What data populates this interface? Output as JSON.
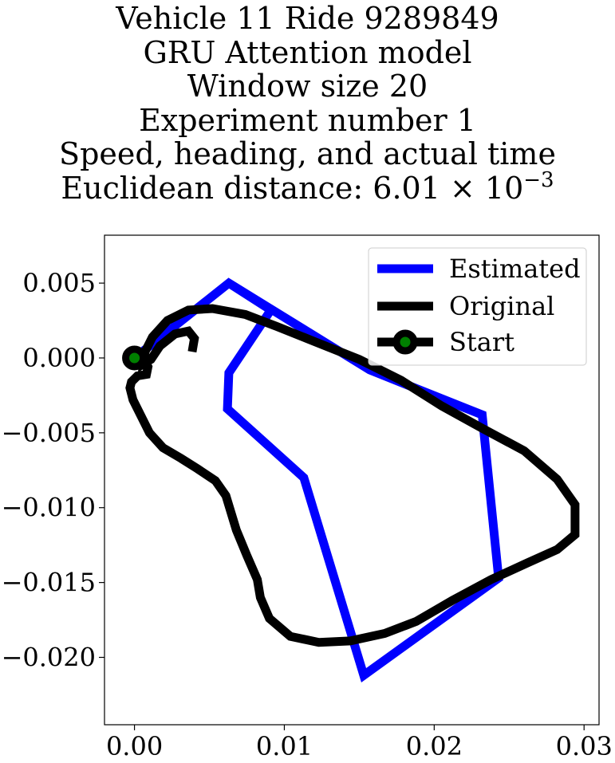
{
  "title": {
    "lines": [
      "Vehicle 11 Ride 9289849",
      "GRU Attention model",
      "Window size 20",
      "Experiment number 1",
      "Speed, heading, and actual time"
    ],
    "distance_prefix": "Euclidean distance: 6.01",
    "distance_times": "×",
    "distance_base": "10",
    "distance_exponent": "−3"
  },
  "chart_data": {
    "type": "line",
    "title": "Vehicle 11 Ride 9289849 GRU Attention model Window size 20 Experiment number 1 Speed, heading, and actual time Euclidean distance: 6.01 × 10^−3",
    "xlabel": "",
    "ylabel": "",
    "xlim": [
      -0.002,
      0.031
    ],
    "ylim": [
      -0.0245,
      0.0082
    ],
    "grid": false,
    "legend_position": "top-right",
    "x_ticks": [
      {
        "value": 0.0,
        "label": "0.00"
      },
      {
        "value": 0.01,
        "label": "0.01"
      },
      {
        "value": 0.02,
        "label": "0.02"
      },
      {
        "value": 0.03,
        "label": "0.03"
      }
    ],
    "y_ticks": [
      {
        "value": 0.005,
        "label": "0.005"
      },
      {
        "value": 0.0,
        "label": "0.000"
      },
      {
        "value": -0.005,
        "label": "−0.005"
      },
      {
        "value": -0.01,
        "label": "−0.010"
      },
      {
        "value": -0.015,
        "label": "−0.015"
      },
      {
        "value": -0.02,
        "label": "−0.020"
      }
    ],
    "series": [
      {
        "name": "Estimated",
        "color": "#0000ff",
        "x": [
          0.0,
          0.0063,
          0.0091,
          0.0063,
          0.0062,
          0.0113,
          0.0153,
          0.0243,
          0.0232,
          0.0157,
          0.0063,
          0.0
        ],
        "y": [
          0.0,
          0.005,
          0.0032,
          -0.001,
          -0.0034,
          -0.008,
          -0.0212,
          -0.0147,
          -0.0038,
          -0.0008,
          0.005,
          0.0
        ]
      },
      {
        "name": "Original",
        "color": "#000000",
        "x": [
          0.0039,
          0.004,
          0.0036,
          0.0027,
          0.0017,
          0.0011,
          0.0006,
          0.0007,
          0.0012,
          0.0022,
          0.0036,
          0.0052,
          0.0074,
          0.0095,
          0.012,
          0.015,
          0.0178,
          0.0205,
          0.0232,
          0.026,
          0.0282,
          0.0294,
          0.0294,
          0.0282,
          0.0262,
          0.0238,
          0.0212,
          0.0188,
          0.0167,
          0.0144,
          0.0123,
          0.0104,
          0.009,
          0.0084,
          0.0082,
          0.0075,
          0.0068,
          0.0061,
          0.0054,
          0.0042,
          0.0031,
          0.0019,
          0.001,
          0.0004,
          -0.0001,
          -0.0003,
          -0.0002,
          0.0002,
          0.0008,
          0.0009,
          0.0006
        ],
        "y": [
          0.0007,
          0.0013,
          0.0018,
          0.0016,
          0.0008,
          -0.0001,
          -0.0004,
          0.0004,
          0.0014,
          0.0025,
          0.0032,
          0.0033,
          0.0029,
          0.0021,
          0.0011,
          -0.0001,
          -0.0015,
          -0.0032,
          -0.0047,
          -0.0062,
          -0.0081,
          -0.0098,
          -0.0118,
          -0.0128,
          -0.0137,
          -0.0148,
          -0.0162,
          -0.0176,
          -0.0184,
          -0.0189,
          -0.019,
          -0.0186,
          -0.0174,
          -0.016,
          -0.0148,
          -0.0132,
          -0.0115,
          -0.0092,
          -0.0082,
          -0.0074,
          -0.0067,
          -0.006,
          -0.005,
          -0.0038,
          -0.0028,
          -0.002,
          -0.0016,
          -0.0012,
          -0.0011,
          -0.0006,
          -0.0001
        ]
      }
    ],
    "start_marker": {
      "name": "Start",
      "x": 0.0,
      "y": 0.0,
      "face_color": "#008000",
      "edge_color": "#000000"
    }
  }
}
